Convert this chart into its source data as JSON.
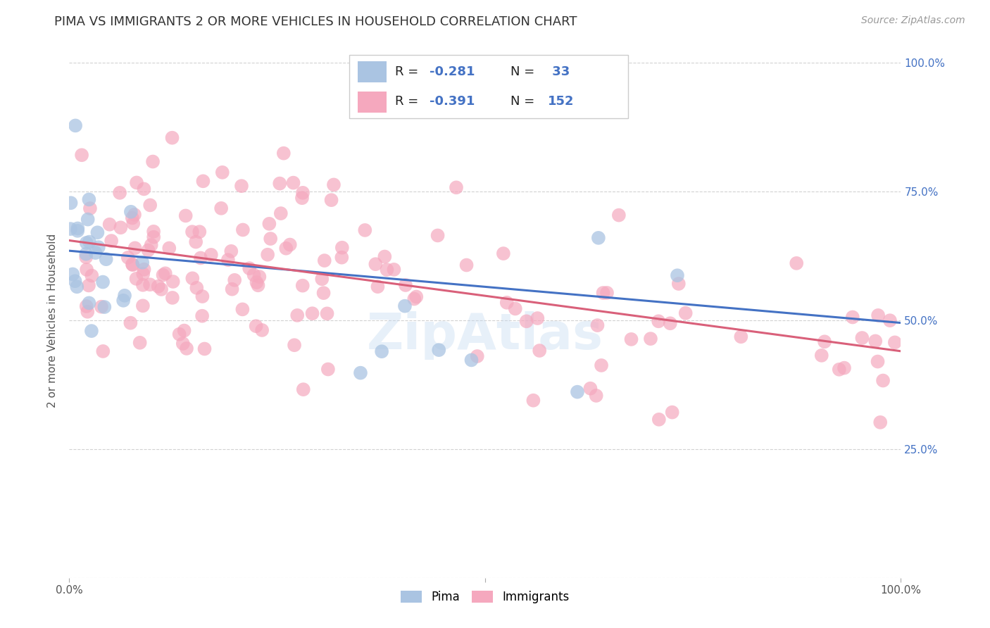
{
  "title": "PIMA VS IMMIGRANTS 2 OR MORE VEHICLES IN HOUSEHOLD CORRELATION CHART",
  "source_text": "Source: ZipAtlas.com",
  "ylabel": "2 or more Vehicles in Household",
  "pima_R": -0.281,
  "pima_N": 33,
  "immigrants_R": -0.391,
  "immigrants_N": 152,
  "pima_color": "#aac4e2",
  "immigrants_color": "#f5a8be",
  "pima_line_color": "#4472c4",
  "immigrants_line_color": "#d9607a",
  "watermark": "ZipAtlas",
  "legend_label_pima": "Pima",
  "legend_label_immigrants": "Immigrants",
  "pima_line_x0": 0.0,
  "pima_line_y0": 0.635,
  "pima_line_x1": 1.0,
  "pima_line_y1": 0.495,
  "imm_line_x0": 0.0,
  "imm_line_y0": 0.655,
  "imm_line_x1": 1.0,
  "imm_line_y1": 0.44,
  "ytick_positions": [
    0.0,
    0.25,
    0.5,
    0.75,
    1.0
  ],
  "ytick_labels": [
    "",
    "25.0%",
    "50.0%",
    "75.0%",
    "100.0%"
  ],
  "xtick_positions": [
    0.0,
    0.5,
    1.0
  ],
  "xtick_labels": [
    "0.0%",
    "",
    "100.0%"
  ],
  "grid_color": "#cccccc",
  "title_fontsize": 13,
  "tick_fontsize": 11,
  "ylabel_fontsize": 11
}
